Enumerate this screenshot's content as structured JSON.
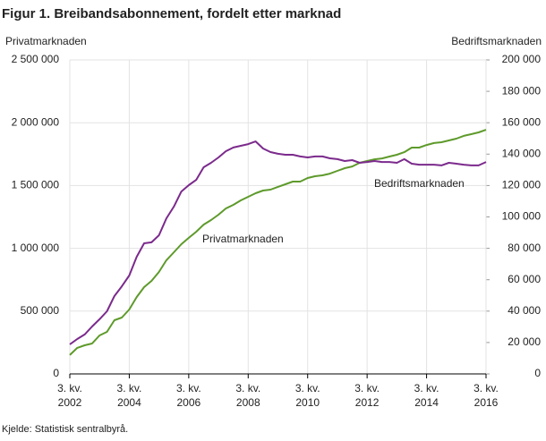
{
  "chart_data": {
    "type": "line",
    "title": "Figur 1. Breibandsabonnement, fordelt etter marknad",
    "ylabel": "Privatmarknaden",
    "y2label": "Bedriftsmarknaden",
    "source": "Kjelde: Statistisk sentralbyrå.",
    "categories": [
      "3. kv.\n2002",
      null,
      null,
      null,
      null,
      null,
      null,
      null,
      "3. kv.\n2004",
      null,
      null,
      null,
      null,
      null,
      null,
      null,
      "3. kv.\n2006",
      null,
      null,
      null,
      null,
      null,
      null,
      null,
      "3. kv.\n2008",
      null,
      null,
      null,
      null,
      null,
      null,
      null,
      "3. kv.\n2010",
      null,
      null,
      null,
      null,
      null,
      null,
      null,
      "3. kv.\n2012",
      null,
      null,
      null,
      null,
      null,
      null,
      null,
      "3. kv.\n2014",
      null,
      null,
      null,
      null,
      null,
      null,
      null,
      "3. kv.\n2016"
    ],
    "ylim": [
      0,
      2500000
    ],
    "yticks": [
      0,
      {
        "value": 500000,
        "label": "500 000"
      },
      {
        "value": 1000000,
        "label": "1 000 000"
      },
      {
        "value": 1500000,
        "label": "1 500 000"
      },
      {
        "value": 2000000,
        "label": "2 000 000"
      },
      {
        "value": 2500000,
        "label": "2 500 000"
      }
    ],
    "y2lim": [
      0,
      200000
    ],
    "y2ticks": [
      0,
      {
        "value": 20000,
        "label": "20 000"
      },
      {
        "value": 40000,
        "label": "40 000"
      },
      {
        "value": 60000,
        "label": "60 000"
      },
      {
        "value": 80000,
        "label": "80 000"
      },
      {
        "value": 100000,
        "label": "100 000"
      },
      {
        "value": 120000,
        "label": "120 000"
      },
      {
        "value": 140000,
        "label": "140 000"
      },
      {
        "value": 160000,
        "label": "160 000"
      },
      {
        "value": 180000,
        "label": "180 000"
      },
      {
        "value": 200000,
        "label": "200 000"
      }
    ],
    "grid": true,
    "series": [
      {
        "name": "Privatmarknaden",
        "color": "#5e9a2b",
        "values": [
          150000,
          207000,
          228000,
          242000,
          306000,
          335000,
          427000,
          449000,
          513000,
          612000,
          691000,
          741000,
          812000,
          905000,
          969000,
          1033000,
          1083000,
          1132000,
          1189000,
          1225000,
          1268000,
          1318000,
          1346000,
          1382000,
          1410000,
          1439000,
          1460000,
          1467000,
          1489000,
          1510000,
          1531000,
          1531000,
          1560000,
          1574000,
          1581000,
          1595000,
          1617000,
          1638000,
          1652000,
          1681000,
          1695000,
          1709000,
          1716000,
          1731000,
          1745000,
          1766000,
          1802000,
          1802000,
          1823000,
          1838000,
          1845000,
          1859000,
          1873000,
          1895000,
          1909000,
          1923000,
          1944000
        ]
      },
      {
        "name": "Bedriftsmarknaden",
        "color": "#7b2a8c",
        "axis": "y2",
        "values": [
          18800,
          22200,
          25100,
          30200,
          34800,
          39900,
          49600,
          55800,
          62700,
          74600,
          83200,
          83800,
          88300,
          99100,
          106600,
          116200,
          120200,
          123600,
          131600,
          134500,
          137900,
          141900,
          144200,
          145300,
          146400,
          148100,
          143600,
          141300,
          140200,
          139600,
          139600,
          138500,
          137900,
          138500,
          138500,
          137300,
          136800,
          135600,
          136200,
          134500,
          135000,
          135600,
          135000,
          135000,
          134500,
          136800,
          133900,
          133300,
          133300,
          133300,
          132800,
          134500,
          133900,
          133300,
          132800,
          132800,
          135000
        ]
      }
    ]
  }
}
